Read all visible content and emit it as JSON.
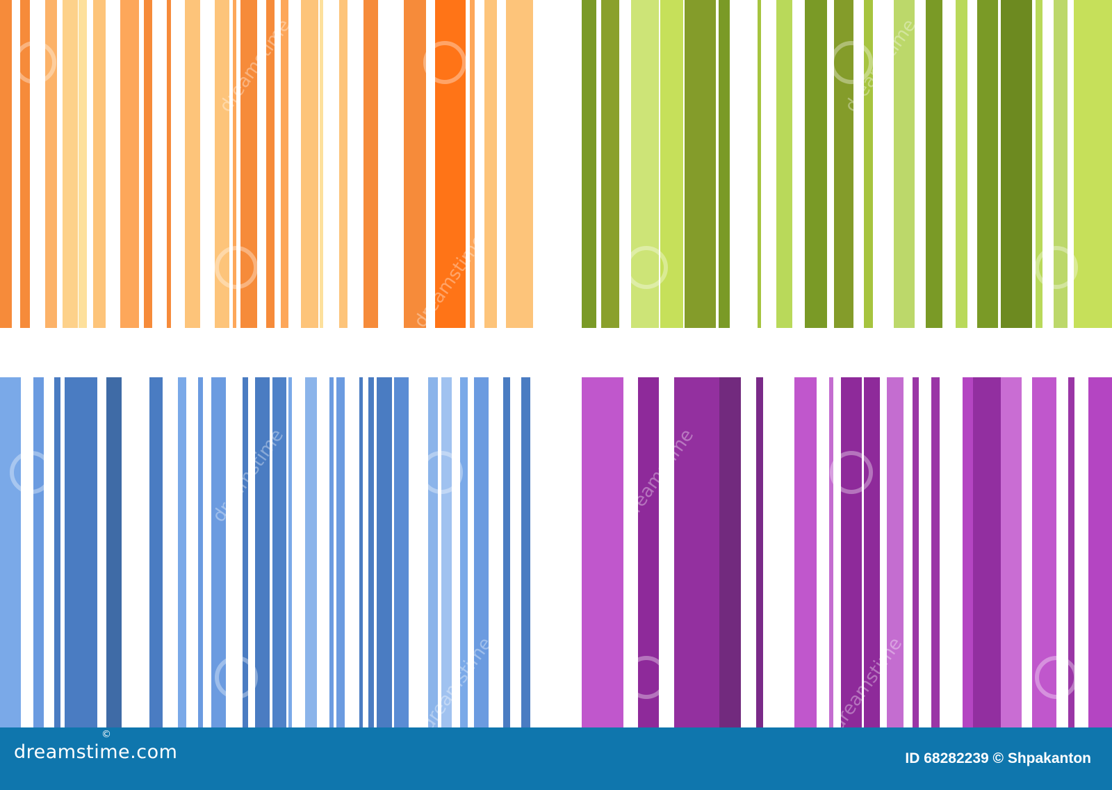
{
  "panels": [
    {
      "name": "orange",
      "colors": [
        "#f68b3a",
        "#fcb268",
        "#fdd18a",
        "#fde09c",
        "#fdc47a",
        "#fda75a",
        "#ff7417"
      ]
    },
    {
      "name": "green",
      "colors": [
        "#7a9a26",
        "#8aa02c",
        "#cde477",
        "#849c2a",
        "#b9d95a",
        "#a6c43f",
        "#bcd86a",
        "#6d8a20",
        "#c6e05a"
      ]
    },
    {
      "name": "blue",
      "colors": [
        "#7aa9e8",
        "#6b9be0",
        "#4a7cc2",
        "#3f6ba6",
        "#4f82c8",
        "#8bb4ea",
        "#5a8cd4",
        "#a0c2f0"
      ]
    },
    {
      "name": "purple",
      "colors": [
        "#c057cc",
        "#8e2a9a",
        "#93309f",
        "#722a7e",
        "#7a2a88",
        "#c46dd0",
        "#9a36a6",
        "#922fa0",
        "#c96dd3",
        "#b445c2"
      ]
    }
  ],
  "watermark": "dreamstime",
  "footer": {
    "background": "#0f76ad",
    "logo": "dreamstime.com",
    "logo_mark": "©",
    "credit": "ID 68282239 © Shpakanton"
  }
}
